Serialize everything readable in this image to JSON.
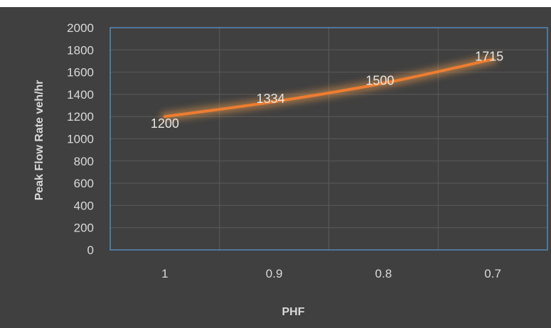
{
  "chart_data": {
    "type": "line",
    "title": "",
    "xlabel": "PHF",
    "ylabel": "Peak Flow Rate veh/hr",
    "categories": [
      "1",
      "0.9",
      "0.8",
      "0.7"
    ],
    "series": [
      {
        "values": [
          1200,
          1334,
          1500,
          1715
        ]
      }
    ],
    "data_labels": [
      "1200",
      "1334",
      "1500",
      "1715"
    ],
    "ylim": [
      0,
      2000
    ],
    "yticks": [
      "0",
      "200",
      "400",
      "600",
      "800",
      "1000",
      "1200",
      "1400",
      "1600",
      "1800",
      "2000"
    ],
    "grid": true,
    "legend": "none",
    "smooth": true
  },
  "colors": {
    "background": "#404040",
    "plot_border": "#5b9bd5",
    "grid": "#5a5a5a",
    "line": "#ed7d31",
    "glow": "#f4a14a",
    "text": "#d9d9d9"
  }
}
